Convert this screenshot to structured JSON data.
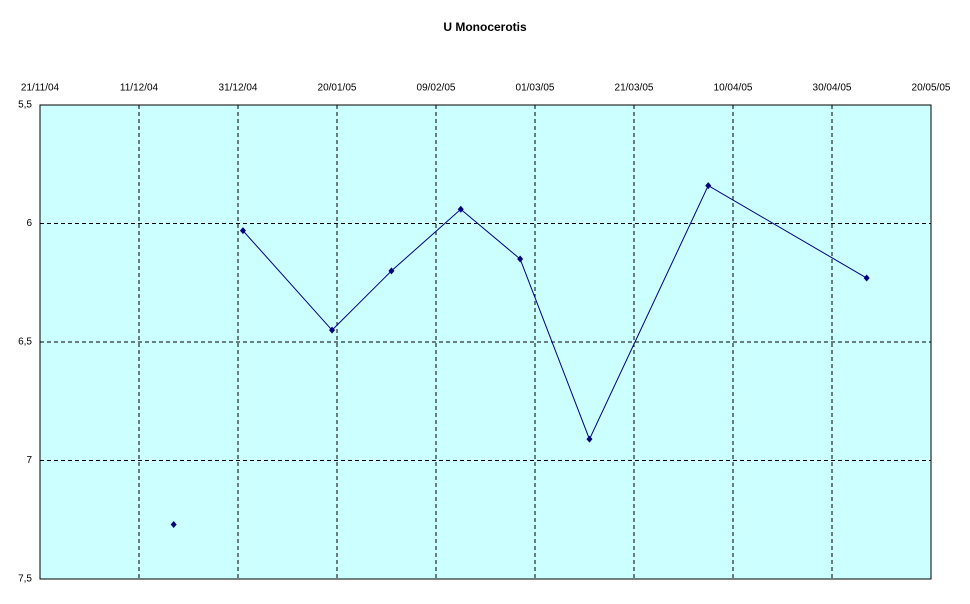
{
  "chart_data": {
    "type": "line",
    "title": "U Monocerotis",
    "x": [
      "2004-12-18",
      null,
      "2005-01-01",
      "2005-01-19",
      "2005-01-31",
      "2005-02-14",
      "2005-02-26",
      "2005-03-12",
      "2005-04-05",
      "2005-05-07"
    ],
    "values": [
      7.27,
      null,
      6.03,
      6.45,
      6.2,
      5.94,
      6.15,
      6.91,
      5.84,
      6.23
    ],
    "color": "#000080",
    "xlim": [
      "2004-11-21",
      "2005-05-20"
    ],
    "xticks": [
      {
        "value": "2004-11-21",
        "label": "21/11/04"
      },
      {
        "value": "2004-12-11",
        "label": "11/12/04"
      },
      {
        "value": "2004-12-31",
        "label": "31/12/04"
      },
      {
        "value": "2005-01-20",
        "label": "20/01/05"
      },
      {
        "value": "2005-02-09",
        "label": "09/02/05"
      },
      {
        "value": "2005-03-01",
        "label": "01/03/05"
      },
      {
        "value": "2005-03-21",
        "label": "21/03/05"
      },
      {
        "value": "2005-04-10",
        "label": "10/04/05"
      },
      {
        "value": "2005-04-30",
        "label": "30/04/05"
      },
      {
        "value": "2005-05-20",
        "label": "20/05/05"
      }
    ],
    "ylim": [
      5.5,
      7.5
    ],
    "y_inverted": true,
    "yticks": [
      {
        "value": 5.5,
        "label": "5,5"
      },
      6,
      {
        "value": 6.5,
        "label": "6,5"
      },
      7,
      {
        "value": 7.5,
        "label": "7,5"
      }
    ],
    "grid": true,
    "plot_background": "#ccffff"
  }
}
